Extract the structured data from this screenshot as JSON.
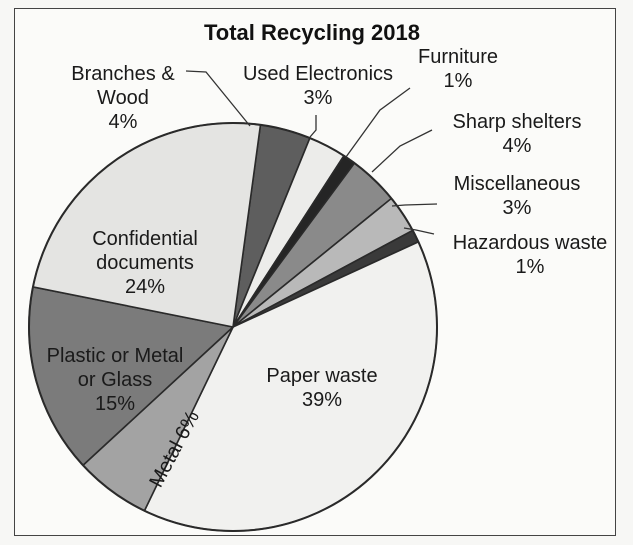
{
  "chart_data": {
    "type": "pie",
    "title": "Total Recycling 2018",
    "slices": [
      {
        "label": "Branches & Wood",
        "label_lines": [
          "Branches &",
          "Wood"
        ],
        "value": 4,
        "value_label": "4%",
        "color": "#5e5e5e"
      },
      {
        "label": "Used Electronics",
        "label_lines": [
          "Used Electronics"
        ],
        "value": 3,
        "value_label": "3%",
        "color": "#ececea"
      },
      {
        "label": "Furniture",
        "label_lines": [
          "Furniture"
        ],
        "value": 1,
        "value_label": "1%",
        "color": "#252525"
      },
      {
        "label": "Sharp shelters",
        "label_lines": [
          "Sharp shelters"
        ],
        "value": 4,
        "value_label": "4%",
        "color": "#8a8a8a"
      },
      {
        "label": "Miscellaneous",
        "label_lines": [
          "Miscellaneous"
        ],
        "value": 3,
        "value_label": "3%",
        "color": "#b9b9b9"
      },
      {
        "label": "Hazardous waste",
        "label_lines": [
          "Hazardous waste"
        ],
        "value": 1,
        "value_label": "1%",
        "color": "#3a3a3a"
      },
      {
        "label": "Paper waste",
        "label_lines": [
          "Paper waste"
        ],
        "value": 39,
        "value_label": "39%",
        "color": "#f1f1ef"
      },
      {
        "label": "Metal",
        "label_lines": [
          "Metal 6%"
        ],
        "value": 6,
        "value_label": "",
        "color": "#a3a3a3"
      },
      {
        "label": "Plastic or Metal or Glass",
        "label_lines": [
          "Plastic or Metal",
          "or Glass"
        ],
        "value": 15,
        "value_label": "15%",
        "color": "#7b7b7b"
      },
      {
        "label": "Confidential documents",
        "label_lines": [
          "Confidential",
          "documents"
        ],
        "value": 24,
        "value_label": "24%",
        "color": "#e4e4e2"
      }
    ]
  }
}
